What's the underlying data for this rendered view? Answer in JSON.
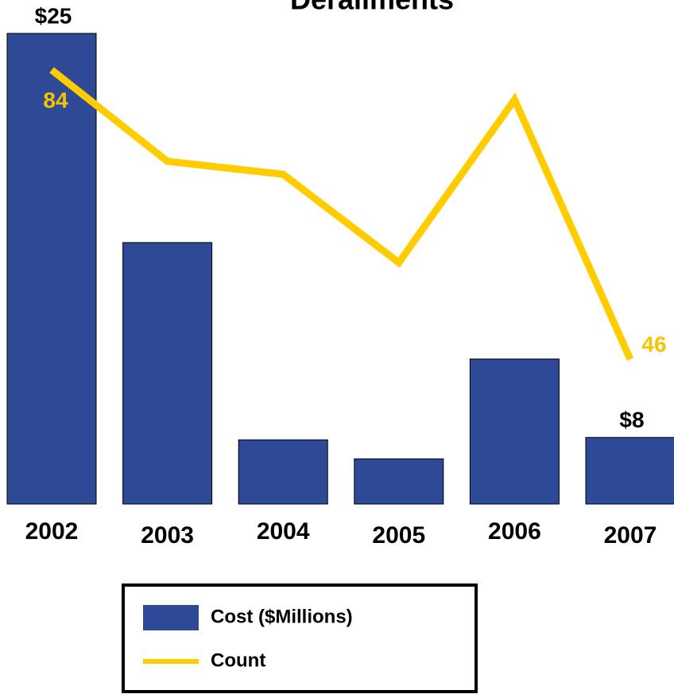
{
  "chart_data": {
    "type": "bar-line",
    "title": "Derailments",
    "categories": [
      "2002",
      "2003",
      "2004",
      "2005",
      "2006",
      "2007"
    ],
    "series": [
      {
        "name": "Cost ($Millions)",
        "type": "bar",
        "color": "#2e4a96",
        "values": [
          25,
          16.2,
          7.9,
          7.1,
          11.3,
          8
        ],
        "value_labels": [
          "$25",
          null,
          null,
          null,
          null,
          "$8"
        ]
      },
      {
        "name": "Count",
        "type": "line",
        "axis": "y2",
        "color": "#ffcc00",
        "values": [
          84,
          72,
          70.3,
          58.7,
          80.1,
          46
        ],
        "value_labels": [
          "84",
          null,
          null,
          null,
          null,
          "46"
        ]
      }
    ],
    "ylim": [
      5.2,
      25
    ],
    "y2lim": [
      27,
      88.8
    ],
    "grid": false
  }
}
